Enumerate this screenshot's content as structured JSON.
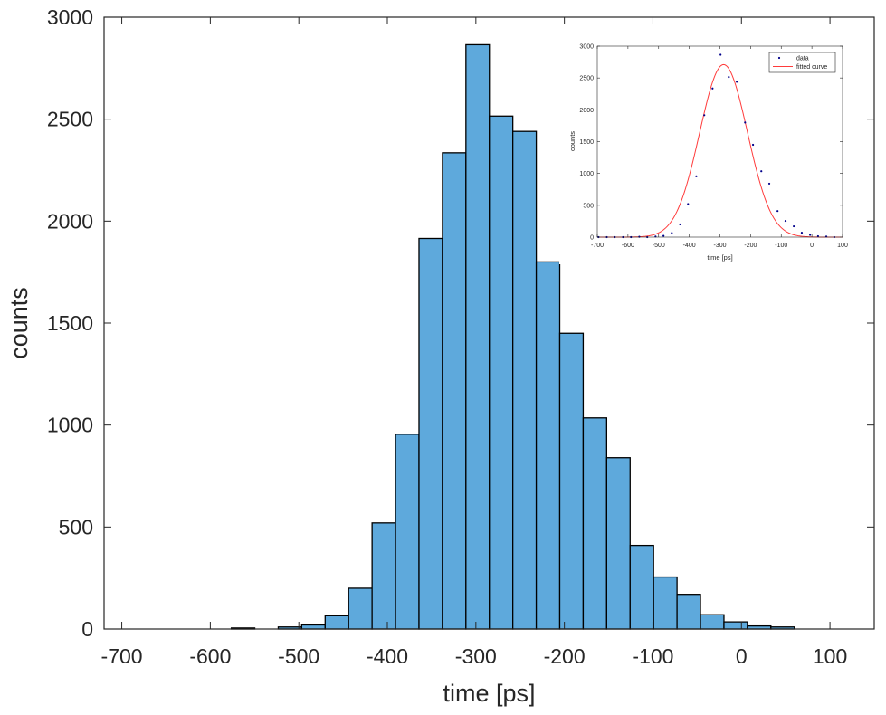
{
  "chart_data": [
    {
      "type": "bar",
      "title": "",
      "xlabel": "time [ps]",
      "ylabel": "counts",
      "xlim": [
        -720,
        150
      ],
      "ylim": [
        0,
        3000
      ],
      "xticks": [
        -700,
        -600,
        -500,
        -400,
        -300,
        -200,
        -100,
        0,
        100
      ],
      "yticks": [
        0,
        500,
        1000,
        1500,
        2000,
        2500,
        3000
      ],
      "xtick_labels": [
        "-700",
        "-600",
        "-500",
        "-400",
        "-300",
        "-200",
        "-100",
        "0",
        "100"
      ],
      "ytick_labels": [
        "0",
        "500",
        "1000",
        "1500",
        "2000",
        "2500",
        "3000"
      ],
      "bin_width": 26.5,
      "bin_centers": [
        -563,
        -510,
        -483.5,
        -457,
        -430.5,
        -404,
        -377.5,
        -351,
        -324.5,
        -298,
        -271.5,
        -245,
        -218.5,
        -192,
        -165.5,
        -139,
        -112.5,
        -86,
        -59.5,
        -33,
        -6.5,
        20,
        46.5
      ],
      "values": [
        5,
        10,
        20,
        65,
        200,
        520,
        955,
        1915,
        2335,
        2865,
        2515,
        2440,
        1800,
        1450,
        1035,
        840,
        410,
        255,
        170,
        70,
        35,
        15,
        10
      ],
      "bar_color": "#5ea9dc",
      "edge_color": "#000000",
      "grid": false,
      "legend": "none"
    },
    {
      "type": "scatter",
      "title": "",
      "xlabel": "time [ps]",
      "ylabel": "counts",
      "xlim": [
        -700,
        100
      ],
      "ylim": [
        0,
        3000
      ],
      "xticks": [
        -700,
        -600,
        -500,
        -400,
        -300,
        -200,
        -100,
        0,
        100
      ],
      "yticks": [
        0,
        500,
        1000,
        1500,
        2000,
        2500,
        3000
      ],
      "xtick_labels": [
        "-700",
        "-600",
        "-500",
        "-400",
        "-300",
        "-200",
        "-100",
        "0",
        "100"
      ],
      "ytick_labels": [
        "0",
        "500",
        "1000",
        "1500",
        "2000",
        "2500",
        "3000"
      ],
      "legend": "top-right",
      "series": [
        {
          "name": "data",
          "mode": "markers",
          "color": "#00008b",
          "x": [
            -696,
            -669,
            -643,
            -616,
            -590,
            -563,
            -537,
            -510,
            -484,
            -457,
            -430,
            -404,
            -377,
            -351,
            -324,
            -298,
            -271,
            -245,
            -218,
            -192,
            -165,
            -139,
            -112,
            -86,
            -59,
            -33,
            -6,
            20,
            47,
            73
          ],
          "y": [
            0,
            0,
            0,
            0,
            0,
            5,
            0,
            10,
            20,
            65,
            200,
            520,
            955,
            1915,
            2335,
            2865,
            2515,
            2440,
            1800,
            1450,
            1035,
            840,
            410,
            255,
            170,
            70,
            35,
            15,
            10,
            0
          ]
        },
        {
          "name": "fitted curve",
          "mode": "line",
          "color": "#ff3b3b",
          "model": "gaussian",
          "amplitude": 2710,
          "mean": -288,
          "sigma": 78
        }
      ]
    }
  ]
}
